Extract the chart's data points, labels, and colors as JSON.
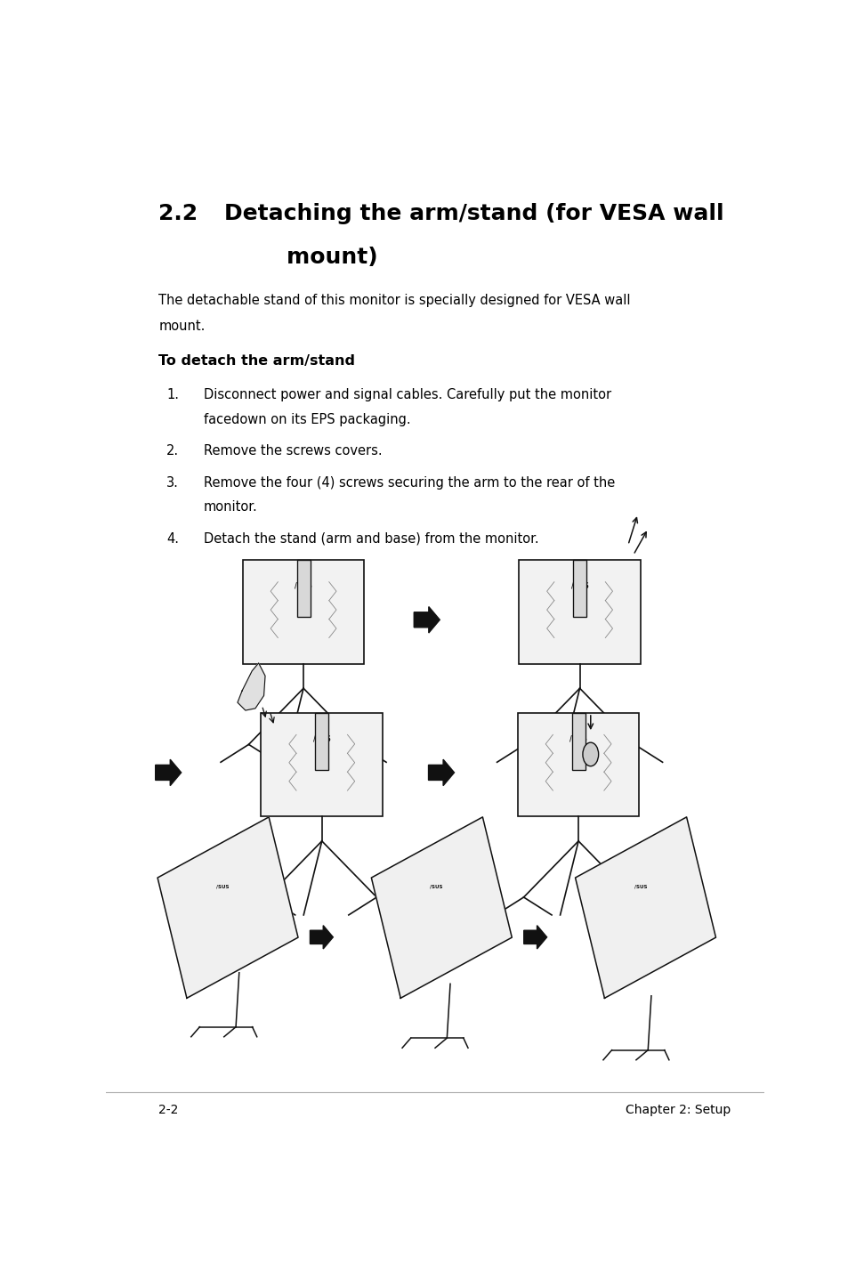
{
  "section_num": "2.2",
  "section_title_line1": "Detaching the arm/stand (for VESA wall",
  "section_title_line2": "        mount)",
  "body_line1": "The detachable stand of this monitor is specially designed for VESA wall",
  "body_line2": "mount.",
  "subheading": "To detach the arm/stand",
  "step1_line1": "Disconnect power and signal cables. Carefully put the monitor",
  "step1_line2": "facedown on its EPS packaging.",
  "step2": "Remove the screws covers.",
  "step3_line1": "Remove the four (4) screws securing the arm to the rear of the",
  "step3_line2": "monitor.",
  "step4": "Detach the stand (arm and base) from the monitor.",
  "footer_left": "2-2",
  "footer_right": "Chapter 2: Setup",
  "bg_color": "#ffffff",
  "text_color": "#000000",
  "ml": 0.08,
  "mr": 0.95
}
